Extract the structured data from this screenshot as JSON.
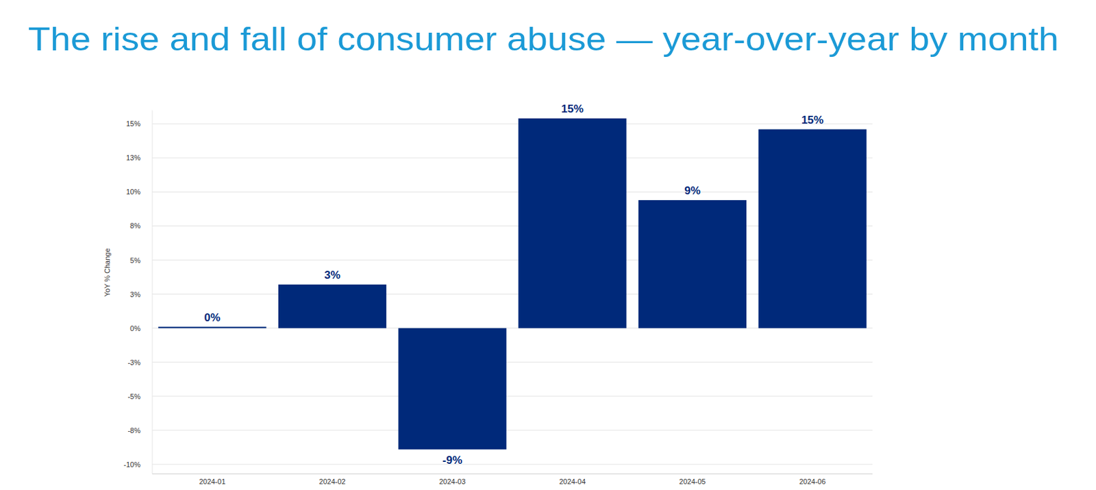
{
  "chart_data": {
    "type": "bar",
    "title": "The rise and fall of consumer abuse — year-over-year by month",
    "y_label": "YoY % Change",
    "categories": [
      "2024-01",
      "2024-02",
      "2024-03",
      "2024-04",
      "2024-05",
      "2024-06"
    ],
    "values": [
      0.1,
      3.2,
      -8.9,
      15.4,
      9.4,
      14.6
    ],
    "value_labels": [
      "0%",
      "3%",
      "-9%",
      "15%",
      "9%",
      "15%"
    ],
    "color": "#00297a",
    "ylim": [
      -10.7,
      16
    ],
    "yticks": [
      {
        "value": -10,
        "label": "-10%"
      },
      {
        "value": -7.5,
        "label": "-8%"
      },
      {
        "value": -5,
        "label": "-5%"
      },
      {
        "value": -2.5,
        "label": "-3%"
      },
      {
        "value": 0,
        "label": "0%"
      },
      {
        "value": 2.5,
        "label": "3%"
      },
      {
        "value": 5,
        "label": "5%"
      },
      {
        "value": 7.5,
        "label": "8%"
      },
      {
        "value": 10,
        "label": "10%"
      },
      {
        "value": 12.5,
        "label": "13%"
      },
      {
        "value": 15,
        "label": "15%"
      }
    ],
    "grid": true,
    "data_labels": true
  }
}
